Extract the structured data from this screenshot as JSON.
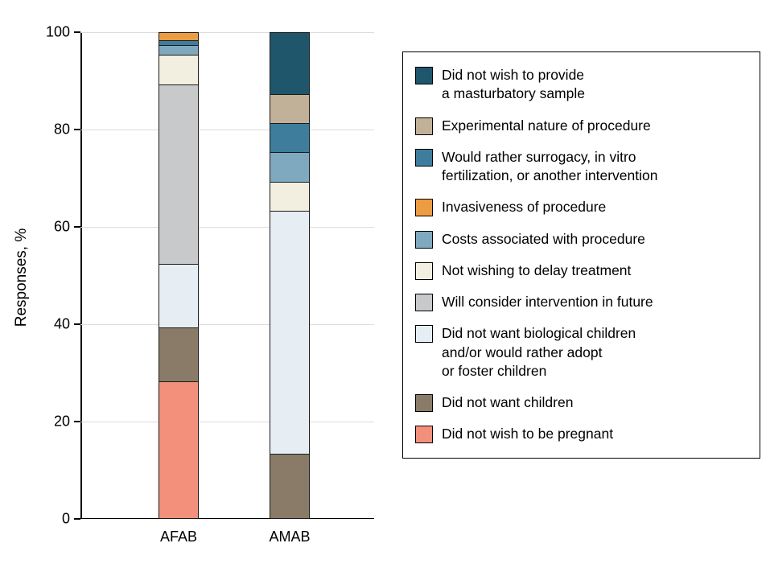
{
  "chart_data": {
    "type": "bar",
    "stacked": true,
    "title": "",
    "xlabel": "",
    "ylabel": "Responses, %",
    "ylim": [
      0,
      100
    ],
    "yticks": [
      0,
      20,
      40,
      60,
      80,
      100
    ],
    "grid": true,
    "legend_position": "right",
    "categories": [
      "AFAB",
      "AMAB"
    ],
    "series": [
      {
        "name": "Did not wish to be pregnant",
        "color": "#F2907B",
        "values": [
          28,
          0
        ]
      },
      {
        "name": "Did not want children",
        "color": "#8A7B68",
        "values": [
          11,
          13
        ]
      },
      {
        "name": "Did not want biological children and/or would rather adopt or foster children",
        "color": "#E6EEF3",
        "values": [
          13,
          50
        ]
      },
      {
        "name": "Will consider intervention in future",
        "color": "#C7C9CB",
        "values": [
          37,
          0
        ]
      },
      {
        "name": "Not wishing to delay treatment",
        "color": "#F2EFE1",
        "values": [
          6,
          6
        ]
      },
      {
        "name": "Costs associated with procedure",
        "color": "#7FA9BF",
        "values": [
          2,
          6
        ]
      },
      {
        "name": "Would rather surrogacy, in vitro fertilization, or another intervention",
        "color": "#3F7D9C",
        "values": [
          1,
          6
        ]
      },
      {
        "name": "Experimental nature of procedure",
        "color": "#C0B198",
        "values": [
          0,
          6
        ]
      },
      {
        "name": "Did not wish to provide a masturbatory sample",
        "color": "#20566B",
        "values": [
          0,
          13
        ]
      },
      {
        "name": "Invasiveness of procedure",
        "color": "#EC9C43",
        "values": [
          2,
          0
        ]
      }
    ],
    "legend": [
      {
        "series": 8,
        "label": "Did not wish to provide\na masturbatory sample"
      },
      {
        "series": 7,
        "label": "Experimental nature of procedure"
      },
      {
        "series": 6,
        "label": "Would rather surrogacy, in vitro\nfertilization, or another intervention"
      },
      {
        "series": 9,
        "label": "Invasiveness of procedure"
      },
      {
        "series": 5,
        "label": "Costs associated with procedure"
      },
      {
        "series": 4,
        "label": "Not wishing to delay treatment"
      },
      {
        "series": 3,
        "label": "Will consider intervention in future"
      },
      {
        "series": 2,
        "label": "Did not want biological children\nand/or would rather adopt\nor foster children"
      },
      {
        "series": 1,
        "label": "Did not want children"
      },
      {
        "series": 0,
        "label": "Did not wish to be pregnant"
      }
    ]
  }
}
